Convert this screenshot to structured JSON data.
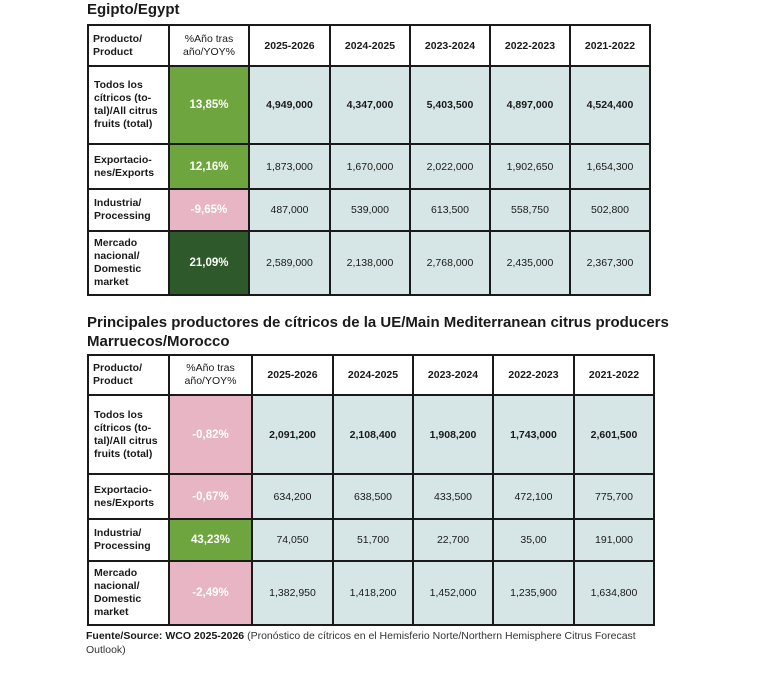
{
  "egypt": {
    "heading": "Egipto/Egypt",
    "header": {
      "product": "Producto/ Product",
      "yoy": "%Año tras año/YOY%",
      "years": [
        "2025-2026",
        "2024-2025",
        "2023-2024",
        "2022-2023",
        "2021-2022"
      ]
    },
    "rows": [
      {
        "label": "Todos los cítricos (to- tal)/All citrus fruits (total)",
        "yoy": "13,85%",
        "yoy_color": "#6fa53e",
        "values": [
          "4,949,000",
          "4,347,000",
          "5,403,500",
          "4,897,000",
          "4,524,400"
        ]
      },
      {
        "label": "Exportacio- nes/Exports",
        "yoy": "12,16%",
        "yoy_color": "#6fa53e",
        "values": [
          "1,873,000",
          "1,670,000",
          "2,022,000",
          "1,902,650",
          "1,654,300"
        ]
      },
      {
        "label": "Industria/ Processing",
        "yoy": "-9,65%",
        "yoy_color": "#e7b5c4",
        "values": [
          "487,000",
          "539,000",
          "613,500",
          "558,750",
          "502,800"
        ]
      },
      {
        "label": "Mercado nacional/ Domestic market",
        "yoy": "21,09%",
        "yoy_color": "#2e5a2b",
        "values": [
          "2,589,000",
          "2,138,000",
          "2,768,000",
          "2,435,000",
          "2,367,300"
        ]
      }
    ]
  },
  "section_heading": "Principales productores de cítricos de la UE/Main Mediterranean citrus producers",
  "morocco": {
    "heading": "Marruecos/Morocco",
    "header": {
      "product": "Producto/ Product",
      "yoy": "%Año tras año/YOY%",
      "years": [
        "2025-2026",
        "2024-2025",
        "2023-2024",
        "2022-2023",
        "2021-2022"
      ]
    },
    "rows": [
      {
        "label": "Todos los cítricos (to- tal)/All citrus fruits (total)",
        "yoy": "-0,82%",
        "yoy_color": "#e7b5c4",
        "values": [
          "2,091,200",
          "2,108,400",
          "1,908,200",
          "1,743,000",
          "2,601,500"
        ]
      },
      {
        "label": "Exportacio- nes/Exports",
        "yoy": "-0,67%",
        "yoy_color": "#e7b5c4",
        "values": [
          "634,200",
          "638,500",
          "433,500",
          "472,100",
          "775,700"
        ]
      },
      {
        "label": "Industria/ Processing",
        "yoy": "43,23%",
        "yoy_color": "#6fa53e",
        "values": [
          "74,050",
          "51,700",
          "22,700",
          "35,00",
          "191,000"
        ]
      },
      {
        "label": "Mercado nacional/ Domestic market",
        "yoy": "-2,49%",
        "yoy_color": "#e7b5c4",
        "values": [
          "1,382,950",
          "1,418,200",
          "1,452,000",
          "1,235,900",
          "1,634,800"
        ]
      }
    ]
  },
  "source": {
    "label": "Fuente/Source:",
    "bold": "WCO 2025-2026",
    "text": "(Pronóstico de cítricos en el Hemisferio Norte/Northern Hemisphere Citrus Forecast Outlook)"
  },
  "colors": {
    "cell_bg": "#d6e6e6",
    "green": "#6fa53e",
    "dark_green": "#2e5a2b",
    "pink": "#e7b5c4"
  }
}
